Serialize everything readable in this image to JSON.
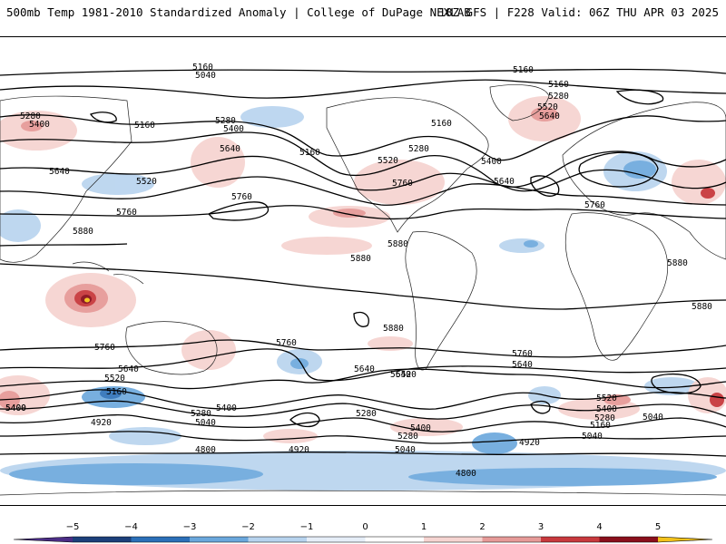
{
  "header": {
    "title_left": "500mb Temp 1981-2010 Standardized Anomaly | College of DuPage NEXLAB",
    "title_right": "18Z GFS | F228 Valid: 06Z THU APR 03 2025"
  },
  "colorbar": {
    "ticks": [
      "−5",
      "−4",
      "−3",
      "−2",
      "−1",
      "0",
      "1",
      "2",
      "3",
      "4",
      "5"
    ],
    "colors": [
      "#4b2d86",
      "#1c3f7a",
      "#2b6fb8",
      "#6aa7dc",
      "#b7d3ee",
      "#e6eef8",
      "#ffffff",
      "#f6d4d1",
      "#e69a98",
      "#c8393d",
      "#8a0f1c",
      "#f3c21b"
    ]
  },
  "contour_labels": [
    {
      "text": "5160"
    },
    {
      "text": "5040"
    },
    {
      "text": "5160"
    },
    {
      "text": "5280"
    },
    {
      "text": "5400"
    },
    {
      "text": "5160"
    },
    {
      "text": "5280"
    },
    {
      "text": "5400"
    },
    {
      "text": "5640"
    },
    {
      "text": "5160"
    },
    {
      "text": "5280"
    },
    {
      "text": "5160"
    },
    {
      "text": "5520"
    },
    {
      "text": "5760"
    },
    {
      "text": "5400"
    },
    {
      "text": "5640"
    },
    {
      "text": "5520"
    },
    {
      "text": "5640"
    },
    {
      "text": "5760"
    },
    {
      "text": "5760"
    },
    {
      "text": "5880"
    },
    {
      "text": "5880"
    },
    {
      "text": "5880"
    },
    {
      "text": "5880"
    },
    {
      "text": "5760"
    },
    {
      "text": "5880"
    },
    {
      "text": "5880"
    },
    {
      "text": "5160"
    },
    {
      "text": "5280"
    },
    {
      "text": "5520"
    },
    {
      "text": "5640"
    },
    {
      "text": "5760"
    },
    {
      "text": "5760"
    },
    {
      "text": "5640"
    },
    {
      "text": "5520"
    },
    {
      "text": "5640"
    },
    {
      "text": "5640"
    },
    {
      "text": "5760"
    },
    {
      "text": "5640"
    },
    {
      "text": "5520"
    },
    {
      "text": "5160"
    },
    {
      "text": "5400"
    },
    {
      "text": "5400"
    },
    {
      "text": "5280"
    },
    {
      "text": "5040"
    },
    {
      "text": "5280"
    },
    {
      "text": "4920"
    },
    {
      "text": "5400"
    },
    {
      "text": "5280"
    },
    {
      "text": "4920"
    },
    {
      "text": "4800"
    },
    {
      "text": "5040"
    },
    {
      "text": "4920"
    },
    {
      "text": "4800"
    },
    {
      "text": "5520"
    },
    {
      "text": "5400"
    },
    {
      "text": "5280"
    },
    {
      "text": "5160"
    },
    {
      "text": "5040"
    },
    {
      "text": "5040"
    },
    {
      "text": "5400"
    }
  ]
}
